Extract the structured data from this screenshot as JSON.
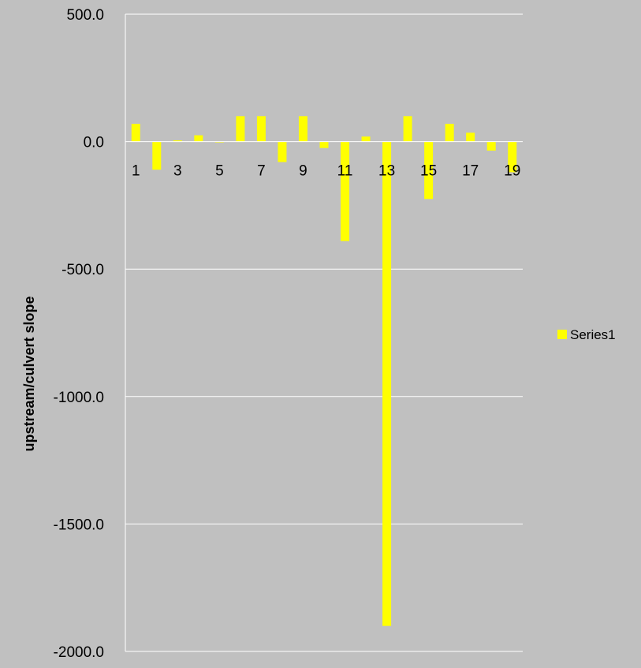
{
  "chart_data": {
    "type": "bar",
    "title": "",
    "xlabel": "",
    "ylabel": "upstream/culvert slope",
    "ylim": [
      -2000,
      500
    ],
    "y_ticks": [
      "500.0",
      "0.0",
      "-500.0",
      "-1000.0",
      "-1500.0",
      "-2000.0"
    ],
    "y_tick_values": [
      500,
      0,
      -500,
      -1000,
      -1500,
      -2000
    ],
    "categories": [
      "1",
      "2",
      "3",
      "4",
      "5",
      "6",
      "7",
      "8",
      "9",
      "10",
      "11",
      "12",
      "13",
      "14",
      "15",
      "16",
      "17",
      "18",
      "19"
    ],
    "x_tick_labels": [
      "1",
      "3",
      "5",
      "7",
      "9",
      "11",
      "13",
      "15",
      "17",
      "19"
    ],
    "series": [
      {
        "name": "Series1",
        "color": "#ffff00",
        "values": [
          70,
          -110,
          5,
          25,
          0,
          100,
          100,
          -80,
          100,
          -25,
          -390,
          20,
          -1900,
          100,
          -225,
          70,
          35,
          -35,
          -120
        ]
      }
    ],
    "grid": "horizontal",
    "legend_position": "right",
    "background": "#c0c0c0",
    "gridline_color": "#ffffff"
  }
}
